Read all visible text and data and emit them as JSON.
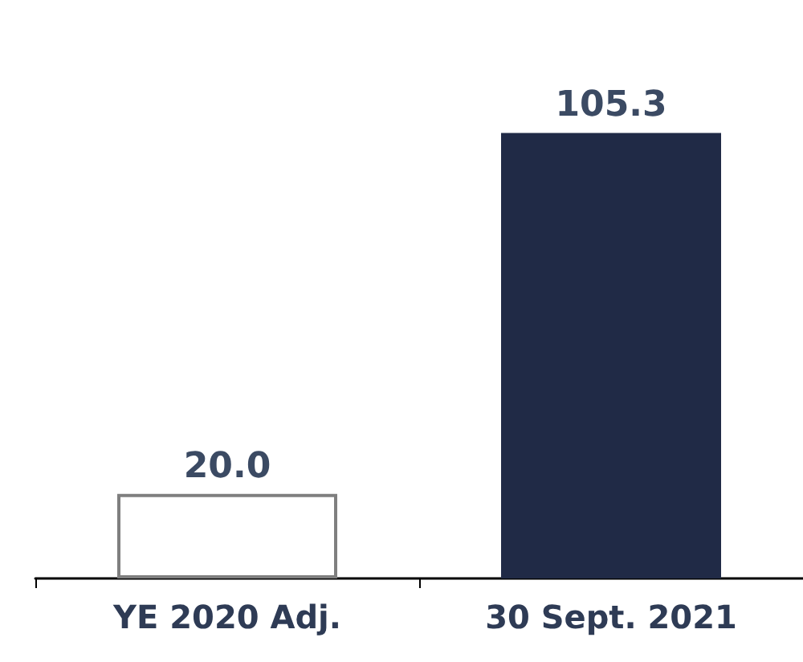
{
  "chart_data": {
    "type": "bar",
    "categories": [
      "YE 2020 Adj.",
      "30 Sept. 2021"
    ],
    "values": [
      20.0,
      105.3
    ],
    "value_labels": [
      "20.0",
      "105.3"
    ],
    "colors": [
      "#ffffff",
      "#202a46"
    ]
  }
}
